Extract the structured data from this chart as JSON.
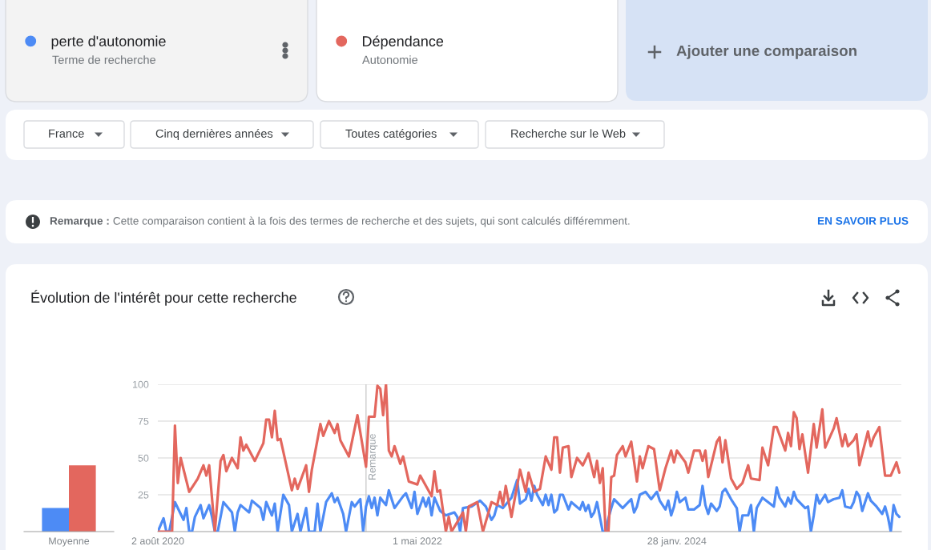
{
  "chart_data": [
    {
      "type": "bar",
      "title": "Évolution de l'intérêt pour cette recherche",
      "categories": [
        "Moyenne"
      ],
      "series": [
        {
          "color": "#4d8bf5",
          "values": [
            16
          ]
        },
        {
          "color": "#e3675e",
          "values": [
            45
          ]
        }
      ],
      "ylim": [
        0,
        100
      ],
      "tick_labels": "x"
    },
    {
      "type": "line",
      "series": [
        {
          "name": "perte d'autonomie",
          "color": "#4d8bf5",
          "x": [
            "2020-08-02",
            "2020-08-16",
            "2020-08-23",
            "2020-08-30",
            "2020-09-13",
            "2020-10-04",
            "2020-10-11",
            "2020-10-18",
            "2020-10-25",
            "2020-11-01",
            "2020-11-15",
            "2020-11-22",
            "2020-12-06",
            "2020-12-13",
            "2020-12-20",
            "2020-12-27",
            "2021-01-10",
            "2021-01-31",
            "2021-02-07",
            "2021-02-14",
            "2021-02-21",
            "2021-03-14",
            "2021-03-21",
            "2021-04-11",
            "2021-04-18",
            "2021-04-25",
            "2021-05-09",
            "2021-05-16",
            "2021-05-23",
            "2021-06-06",
            "2021-06-20",
            "2021-06-27",
            "2021-07-11",
            "2021-07-18",
            "2021-08-01",
            "2021-08-08",
            "2021-08-22",
            "2021-08-29",
            "2021-09-05",
            "2021-09-19",
            "2021-10-03",
            "2021-10-10",
            "2021-10-17",
            "2021-10-31",
            "2021-11-07",
            "2021-11-21",
            "2021-11-28",
            "2021-12-12",
            "2021-12-19",
            "2021-12-26",
            "2022-01-02",
            "2022-01-09",
            "2022-01-16",
            "2022-01-23",
            "2022-01-30",
            "2022-02-13",
            "2022-02-20",
            "2022-03-06",
            "2022-03-27",
            "2022-04-03",
            "2022-04-17",
            "2022-04-24",
            "2022-05-01",
            "2022-05-15",
            "2022-05-22",
            "2022-05-29",
            "2022-06-05",
            "2022-06-12",
            "2022-06-26",
            "2022-07-10",
            "2022-07-31",
            "2022-08-07",
            "2022-08-14",
            "2022-08-21",
            "2022-09-11",
            "2022-10-02",
            "2022-10-16",
            "2022-10-30",
            "2022-11-06",
            "2022-11-13",
            "2022-11-27",
            "2022-12-18",
            "2023-01-01",
            "2023-01-08",
            "2023-01-22",
            "2023-01-29",
            "2023-02-05",
            "2023-02-12",
            "2023-02-19",
            "2023-03-05",
            "2023-03-12",
            "2023-03-19",
            "2023-03-26",
            "2023-04-02",
            "2023-04-09",
            "2023-04-16",
            "2023-04-23",
            "2023-05-07",
            "2023-05-14",
            "2023-06-04",
            "2023-06-11",
            "2023-06-18",
            "2023-06-25",
            "2023-07-02",
            "2023-07-09",
            "2023-07-16",
            "2023-07-30",
            "2023-08-06",
            "2023-08-13",
            "2023-08-20",
            "2023-08-27",
            "2023-09-17",
            "2023-10-01",
            "2023-10-08",
            "2023-10-15",
            "2023-10-22",
            "2023-10-29",
            "2023-11-12",
            "2023-11-26",
            "2023-12-10",
            "2023-12-17",
            "2023-12-31",
            "2024-01-07",
            "2024-01-14",
            "2024-01-21",
            "2024-01-28",
            "2024-02-04",
            "2024-02-18",
            "2024-02-25",
            "2024-03-10",
            "2024-03-24",
            "2024-03-31",
            "2024-04-07",
            "2024-04-14",
            "2024-04-21",
            "2024-05-05",
            "2024-05-12",
            "2024-05-19",
            "2024-05-26",
            "2024-06-09",
            "2024-06-23",
            "2024-06-30",
            "2024-07-07",
            "2024-07-21",
            "2024-07-28",
            "2024-08-04",
            "2024-08-11",
            "2024-08-25",
            "2024-09-22",
            "2024-09-29",
            "2024-10-06",
            "2024-10-20",
            "2024-10-27",
            "2024-11-03",
            "2024-11-10",
            "2024-11-17",
            "2024-12-08",
            "2024-12-15",
            "2024-12-22",
            "2024-12-29",
            "2025-01-05",
            "2025-01-12",
            "2025-01-26",
            "2025-02-02",
            "2025-02-16",
            "2025-03-02",
            "2025-03-09",
            "2025-03-16",
            "2025-03-30",
            "2025-04-06",
            "2025-04-13",
            "2025-04-20",
            "2025-04-27",
            "2025-05-11",
            "2025-05-18",
            "2025-06-01",
            "2025-06-15",
            "2025-06-22",
            "2025-06-29",
            "2025-07-06",
            "2025-07-13",
            "2025-07-20",
            "2025-07-27"
          ],
          "values": [
            0,
            9,
            0,
            0,
            20,
            8,
            16,
            0,
            0,
            10,
            18,
            9,
            18,
            10,
            0,
            0,
            20,
            13,
            0,
            13,
            18,
            13,
            21,
            16,
            8,
            20,
            11,
            19,
            0,
            25,
            18,
            0,
            12,
            0,
            16,
            0,
            0,
            19,
            0,
            20,
            26,
            20,
            23,
            12,
            0,
            20,
            17,
            22,
            0,
            17,
            24,
            16,
            23,
            11,
            23,
            18,
            28,
            16,
            24,
            26,
            16,
            27,
            12,
            23,
            17,
            23,
            11,
            23,
            14,
            11,
            13,
            10,
            0,
            16,
            17,
            21,
            17,
            8,
            11,
            18,
            16,
            23,
            35,
            19,
            22,
            29,
            21,
            31,
            25,
            18,
            25,
            18,
            25,
            13,
            15,
            25,
            25,
            15,
            20,
            15,
            20,
            14,
            18,
            10,
            13,
            20,
            0,
            0,
            9,
            16,
            22,
            16,
            20,
            22,
            13,
            17,
            25,
            27,
            22,
            27,
            21,
            15,
            21,
            11,
            17,
            27,
            20,
            23,
            15,
            15,
            18,
            31,
            18,
            12,
            19,
            14,
            17,
            27,
            29,
            22,
            16,
            0,
            11,
            11,
            18,
            0,
            16,
            23,
            17,
            30,
            23,
            17,
            23,
            19,
            27,
            22,
            16,
            17,
            0,
            11,
            25,
            19,
            25,
            20,
            22,
            23,
            28,
            17,
            16,
            20,
            27,
            24,
            14,
            26,
            21,
            17,
            12,
            17,
            10,
            0,
            18,
            12,
            10
          ]
        },
        {
          "name": "Dépendance",
          "color": "#e3675e",
          "x": [
            "2020-08-02",
            "2020-09-06",
            "2020-09-13",
            "2020-09-20",
            "2020-09-27",
            "2020-10-18",
            "2020-11-08",
            "2020-11-22",
            "2020-11-29",
            "2020-12-06",
            "2020-12-20",
            "2021-01-03",
            "2021-01-10",
            "2021-01-17",
            "2021-01-31",
            "2021-02-14",
            "2021-02-21",
            "2021-02-28",
            "2021-03-07",
            "2021-03-28",
            "2021-04-18",
            "2021-04-25",
            "2021-05-02",
            "2021-05-09",
            "2021-05-16",
            "2021-05-23",
            "2021-05-30",
            "2021-06-27",
            "2021-07-04",
            "2021-07-11",
            "2021-08-01",
            "2021-08-08",
            "2021-08-15",
            "2021-09-05",
            "2021-09-12",
            "2021-09-26",
            "2021-10-10",
            "2021-10-17",
            "2021-10-24",
            "2021-11-14",
            "2021-12-05",
            "2021-12-26",
            "2022-01-02",
            "2022-01-16",
            "2022-01-23",
            "2022-01-30",
            "2022-02-06",
            "2022-02-13",
            "2022-02-20",
            "2022-02-27",
            "2022-03-06",
            "2022-03-20",
            "2022-03-27",
            "2022-04-10",
            "2022-05-01",
            "2022-05-08",
            "2022-06-05",
            "2022-06-12",
            "2022-06-19",
            "2022-06-26",
            "2022-07-10",
            "2022-07-17",
            "2022-07-24",
            "2022-08-21",
            "2022-08-28",
            "2022-09-04",
            "2022-09-25",
            "2022-10-09",
            "2022-10-30",
            "2022-11-13",
            "2022-11-20",
            "2022-11-27",
            "2022-12-04",
            "2022-12-18",
            "2023-01-08",
            "2023-01-22",
            "2023-01-29",
            "2023-02-12",
            "2023-02-26",
            "2023-03-12",
            "2023-03-26",
            "2023-04-02",
            "2023-04-09",
            "2023-04-16",
            "2023-04-23",
            "2023-05-07",
            "2023-05-14",
            "2023-05-28",
            "2023-06-11",
            "2023-06-25",
            "2023-07-09",
            "2023-07-16",
            "2023-07-23",
            "2023-07-30",
            "2023-08-06",
            "2023-08-13",
            "2023-08-20",
            "2023-08-27",
            "2023-09-03",
            "2023-09-17",
            "2023-09-24",
            "2023-10-08",
            "2023-10-22",
            "2023-10-29",
            "2023-11-05",
            "2023-11-19",
            "2023-12-03",
            "2023-12-17",
            "2023-12-31",
            "2024-01-14",
            "2024-01-21",
            "2024-01-28",
            "2024-02-18",
            "2024-02-25",
            "2024-03-10",
            "2024-03-24",
            "2024-03-31",
            "2024-04-07",
            "2024-04-14",
            "2024-05-05",
            "2024-05-12",
            "2024-05-19",
            "2024-05-26",
            "2024-06-09",
            "2024-06-23",
            "2024-07-07",
            "2024-07-21",
            "2024-07-28",
            "2024-08-18",
            "2024-08-25",
            "2024-09-08",
            "2024-09-22",
            "2024-09-29",
            "2024-10-20",
            "2024-10-27",
            "2024-11-03",
            "2024-11-10",
            "2024-11-17",
            "2024-11-24",
            "2024-12-01",
            "2024-12-15",
            "2024-12-29",
            "2025-01-05",
            "2025-01-19",
            "2025-01-26",
            "2025-02-16",
            "2025-02-23",
            "2025-03-09",
            "2025-03-16",
            "2025-03-23",
            "2025-04-06",
            "2025-04-13",
            "2025-04-20",
            "2025-05-11",
            "2025-05-18",
            "2025-05-25",
            "2025-06-08",
            "2025-06-22",
            "2025-07-06",
            "2025-07-20",
            "2025-07-27"
          ],
          "values": [
            0,
            0,
            72,
            33,
            50,
            27,
            36,
            45,
            38,
            45,
            0,
            48,
            52,
            41,
            50,
            43,
            64,
            55,
            59,
            48,
            60,
            76,
            76,
            64,
            82,
            62,
            63,
            28,
            36,
            29,
            45,
            27,
            42,
            73,
            65,
            75,
            67,
            73,
            62,
            51,
            79,
            44,
            78,
            78,
            99,
            97,
            79,
            100,
            55,
            51,
            58,
            46,
            51,
            34,
            32,
            38,
            24,
            41,
            27,
            28,
            0,
            10,
            0,
            13,
            0,
            17,
            20,
            0,
            20,
            18,
            27,
            18,
            31,
            10,
            42,
            27,
            40,
            27,
            29,
            51,
            42,
            64,
            64,
            40,
            57,
            58,
            37,
            50,
            45,
            53,
            37,
            48,
            33,
            43,
            0,
            0,
            37,
            38,
            52,
            58,
            51,
            61,
            34,
            51,
            43,
            58,
            56,
            28,
            43,
            55,
            47,
            55,
            47,
            40,
            55,
            55,
            48,
            55,
            37,
            61,
            64,
            47,
            62,
            36,
            29,
            33,
            45,
            36,
            35,
            57,
            45,
            71,
            71,
            55,
            67,
            58,
            81,
            77,
            56,
            66,
            40,
            73,
            57,
            83,
            57,
            70,
            77,
            58,
            66,
            58,
            62,
            66,
            45,
            68,
            58,
            64,
            71,
            38,
            38,
            47,
            40
          ]
        }
      ],
      "xlim": [
        "2020-08-02",
        "2025-08-01"
      ],
      "xticks": [
        {
          "value": "2020-08-02",
          "label": "2 août 2020"
        },
        {
          "value": "2022-05-01",
          "label": "1 mai 2022"
        },
        {
          "value": "2024-01-28",
          "label": "28 janv. 2024"
        }
      ],
      "ylim": [
        0,
        100
      ],
      "yticks": [
        25,
        50,
        75,
        100
      ],
      "grid": "y",
      "legend": "top",
      "ref_lines": [
        {
          "axis": "x",
          "value": "2021-12-26",
          "label": "Remarque",
          "color": "#cccccc"
        }
      ],
      "annotations": [
        "Terme de recherche",
        "Autonomie",
        "Ajouter une comparaison",
        "France",
        "Cinq dernières années",
        "Toutes catégories",
        "Recherche sur le Web",
        "Remarque :",
        "Cette comparaison contient à la fois des termes de recherche et des sujets, qui sont calculés différemment.",
        "EN SAVOIR PLUS"
      ]
    }
  ]
}
